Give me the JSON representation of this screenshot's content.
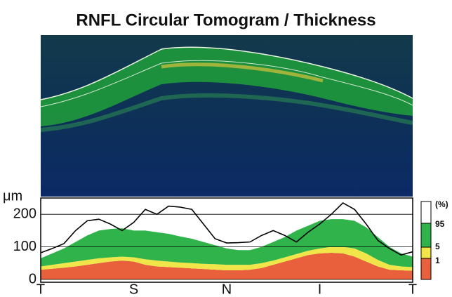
{
  "chart_data": {
    "type": "line",
    "title": "RNFL Circular Tomogram / Thickness",
    "y_label": "μm",
    "legend_title": "(%)",
    "categories": [
      "T",
      null,
      null,
      null,
      null,
      null,
      null,
      null,
      "S",
      null,
      null,
      null,
      null,
      null,
      null,
      null,
      "N",
      null,
      null,
      null,
      null,
      null,
      null,
      null,
      "I",
      null,
      null,
      null,
      null,
      null,
      null,
      null,
      "T"
    ],
    "ylim": [
      0,
      250
    ],
    "yticks": [
      0,
      100,
      200
    ],
    "grid": true,
    "bands": [
      {
        "name": "1",
        "color": "#e8603c",
        "values": [
          30,
          33,
          36,
          40,
          45,
          50,
          55,
          58,
          55,
          45,
          40,
          38,
          36,
          34,
          32,
          30,
          28,
          28,
          30,
          35,
          45,
          55,
          65,
          75,
          80,
          82,
          80,
          70,
          55,
          40,
          30,
          28,
          27
        ]
      },
      {
        "name": "5",
        "color": "#f0e64a",
        "values": [
          40,
          45,
          50,
          55,
          60,
          65,
          68,
          70,
          68,
          62,
          58,
          55,
          52,
          50,
          48,
          47,
          45,
          45,
          45,
          50,
          58,
          68,
          78,
          88,
          95,
          100,
          100,
          95,
          80,
          60,
          45,
          40,
          38
        ]
      },
      {
        "name": "95",
        "color": "#2fb34a",
        "values": [
          65,
          80,
          95,
          115,
          135,
          150,
          155,
          157,
          150,
          150,
          145,
          140,
          132,
          125,
          115,
          105,
          95,
          90,
          90,
          100,
          115,
          130,
          150,
          165,
          180,
          185,
          185,
          180,
          160,
          130,
          100,
          80,
          70
        ]
      }
    ],
    "series": [
      {
        "color": "#000000",
        "values": [
          82,
          95,
          110,
          150,
          180,
          185,
          170,
          150,
          175,
          215,
          200,
          225,
          222,
          215,
          170,
          125,
          112,
          113,
          115,
          135,
          150,
          135,
          115,
          145,
          170,
          200,
          235,
          215,
          170,
          120,
          95,
          75,
          85
        ]
      }
    ]
  }
}
